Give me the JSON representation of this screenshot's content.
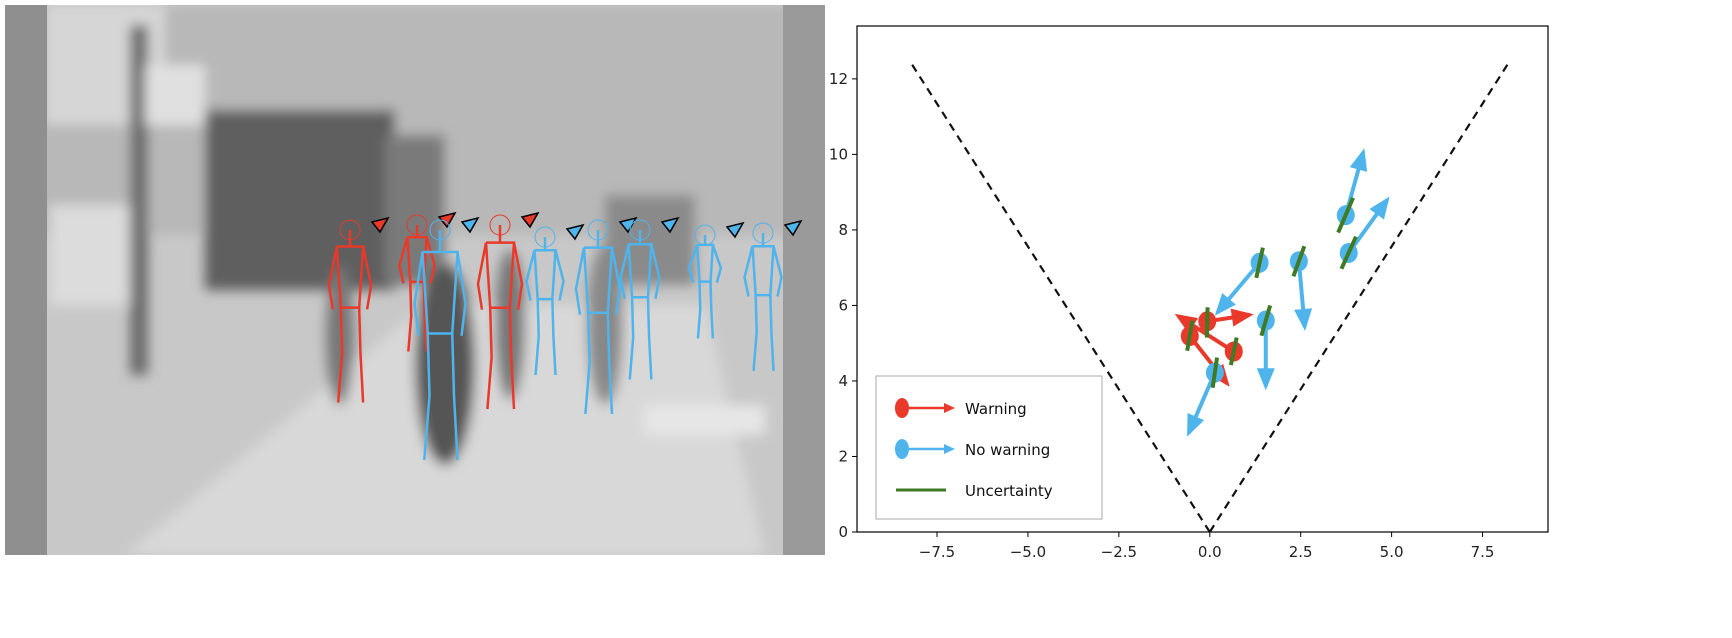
{
  "figure": {
    "left_panel": "photo",
    "colors": {
      "warning": "#e8392a",
      "no_warning": "#4fb4ec",
      "uncertainty": "#3f7a24",
      "fov": "#111111"
    }
  },
  "chart_data": {
    "type": "scatter",
    "title": "",
    "xlabel": "",
    "ylabel": "",
    "xlim": [
      -9.7,
      9.3
    ],
    "ylim": [
      0,
      13.4
    ],
    "xticks": [
      "−7.5",
      "−5.0",
      "−2.5",
      "0.0",
      "2.5",
      "5.0",
      "7.5"
    ],
    "xtick_values": [
      -7.5,
      -5.0,
      -2.5,
      0.0,
      2.5,
      5.0,
      7.5
    ],
    "yticks": [
      "0",
      "2",
      "4",
      "6",
      "8",
      "10",
      "12"
    ],
    "ytick_values": [
      0,
      2,
      4,
      6,
      8,
      10,
      12
    ],
    "grid": false,
    "legend_placement": "lower-left",
    "fov_lines": [
      [
        [
          0,
          0
        ],
        [
          -8.2,
          12.4
        ]
      ],
      [
        [
          0,
          0
        ],
        [
          8.2,
          12.4
        ]
      ]
    ],
    "legend": [
      {
        "label": "Warning",
        "kind": "warning"
      },
      {
        "label": "No warning",
        "kind": "no_warning"
      },
      {
        "label": "Uncertainty",
        "kind": "uncertainty"
      }
    ],
    "series": [
      {
        "name": "Warning",
        "points": [
          {
            "x": -0.55,
            "y": 5.19,
            "to": [
              0.48,
              3.93
            ],
            "unc": [
              [
                -0.62,
                4.8
              ],
              [
                -0.48,
                5.6
              ]
            ]
          },
          {
            "x": -0.07,
            "y": 5.58,
            "to": [
              1.1,
              5.75
            ],
            "unc": [
              [
                -0.08,
                5.15
              ],
              [
                -0.06,
                5.95
              ]
            ]
          },
          {
            "x": 0.66,
            "y": 4.78,
            "to": [
              -0.87,
              5.72
            ],
            "unc": [
              [
                0.58,
                4.42
              ],
              [
                0.74,
                5.15
              ]
            ]
          }
        ]
      },
      {
        "name": "No warning",
        "points": [
          {
            "x": 3.74,
            "y": 8.39,
            "to": [
              4.22,
              10.06
            ],
            "unc": [
              [
                3.53,
                7.93
              ],
              [
                3.94,
                8.85
              ]
            ]
          },
          {
            "x": 3.82,
            "y": 7.39,
            "to": [
              4.88,
              8.8
            ],
            "unc": [
              [
                3.62,
                6.97
              ],
              [
                4.02,
                7.82
              ]
            ]
          },
          {
            "x": 1.37,
            "y": 7.13,
            "to": [
              0.21,
              5.81
            ],
            "unc": [
              [
                1.28,
                6.73
              ],
              [
                1.46,
                7.53
              ]
            ]
          },
          {
            "x": 2.45,
            "y": 7.17,
            "to": [
              2.61,
              5.43
            ],
            "unc": [
              [
                2.3,
                6.77
              ],
              [
                2.6,
                7.57
              ]
            ]
          },
          {
            "x": 1.54,
            "y": 5.6,
            "to": [
              1.54,
              3.86
            ],
            "unc": [
              [
                1.42,
                5.2
              ],
              [
                1.66,
                6.0
              ]
            ]
          },
          {
            "x": 0.14,
            "y": 4.22,
            "to": [
              -0.58,
              2.62
            ],
            "unc": [
              [
                0.08,
                3.82
              ],
              [
                0.2,
                4.62
              ]
            ]
          }
        ]
      }
    ]
  }
}
